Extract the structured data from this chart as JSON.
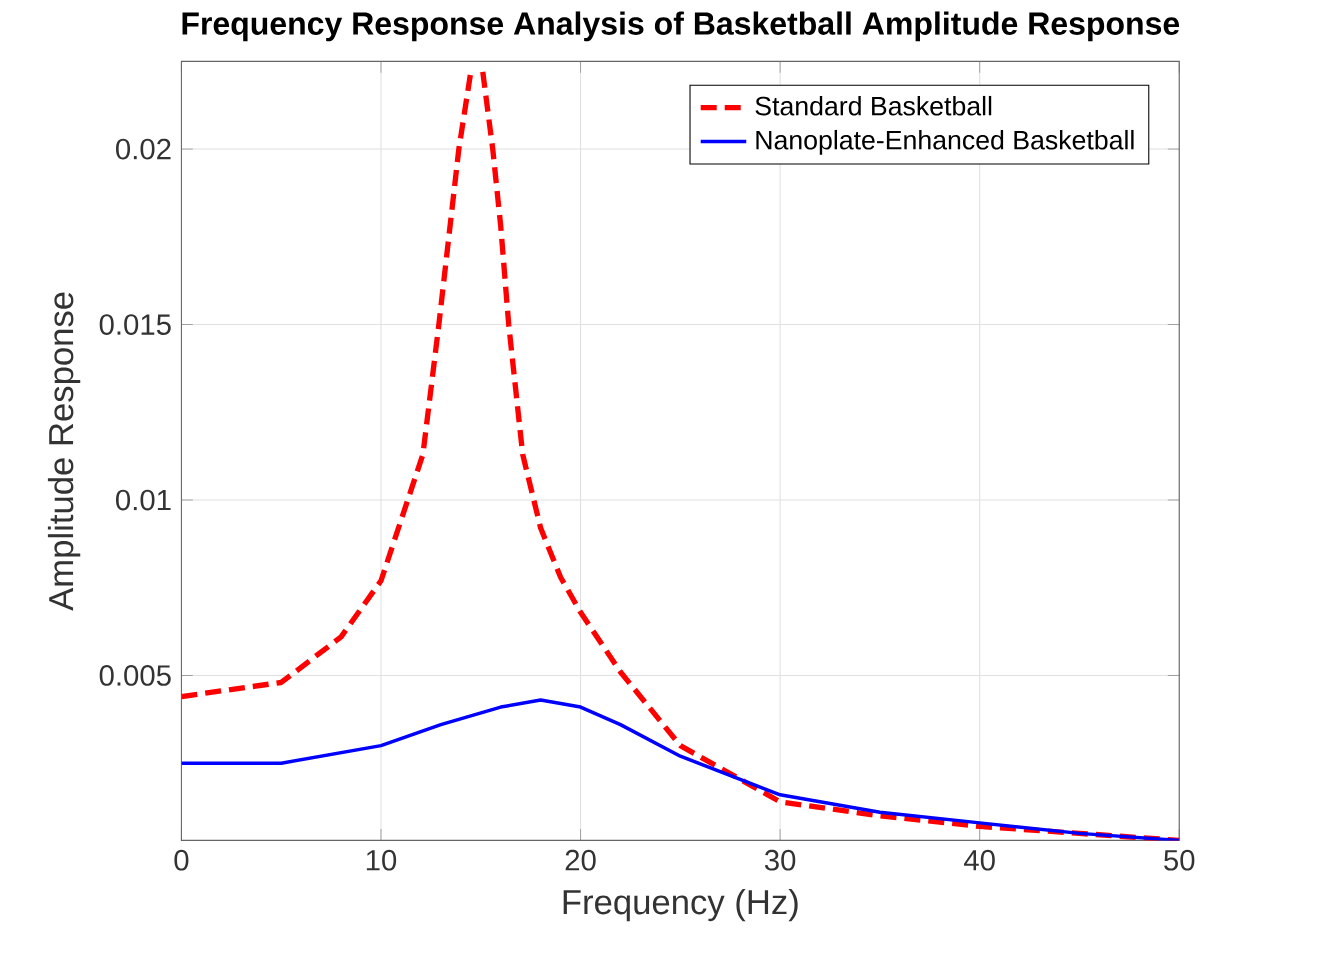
{
  "chart_data": {
    "type": "line",
    "title": "Frequency Response Analysis of Basketball Amplitude Response",
    "xlabel": "Frequency (Hz)",
    "ylabel": "Amplitude Response",
    "xlim": [
      0,
      50
    ],
    "ylim": [
      0.0003,
      0.0225
    ],
    "xticks": [
      0,
      10,
      20,
      30,
      40,
      50
    ],
    "yticks": [
      0.005,
      0.01,
      0.015,
      0.02
    ],
    "grid": true,
    "legend": "top right",
    "series": [
      {
        "name": "Standard Basketball",
        "color": "#ff0000",
        "line_style": "dashed",
        "x": [
          0,
          5,
          8,
          10,
          12.1,
          12.9,
          13.9,
          14.5,
          14.8,
          15.1,
          15.6,
          16,
          16.4,
          17.1,
          18,
          19,
          20,
          22,
          25,
          30,
          35,
          40,
          45,
          50
        ],
        "values": [
          0.0044,
          0.0048,
          0.0061,
          0.0077,
          0.0113,
          0.015,
          0.02,
          0.0222,
          null,
          0.0222,
          0.02,
          0.0178,
          0.015,
          0.0113,
          0.0092,
          0.0078,
          0.0068,
          0.0051,
          0.003,
          0.0014,
          0.001,
          0.0007,
          0.0005,
          0.0003
        ]
      },
      {
        "name": "Nanoplate-Enhanced Basketball",
        "color": "#0000ff",
        "line_style": "solid",
        "x": [
          0,
          5,
          10,
          13,
          16,
          18,
          20,
          22,
          25,
          30,
          35,
          40,
          45,
          50
        ],
        "values": [
          0.0025,
          0.0025,
          0.003,
          0.0036,
          0.0041,
          0.0043,
          0.0041,
          0.0036,
          0.0027,
          0.0016,
          0.0011,
          0.0008,
          0.0005,
          0.0003
        ]
      }
    ]
  }
}
